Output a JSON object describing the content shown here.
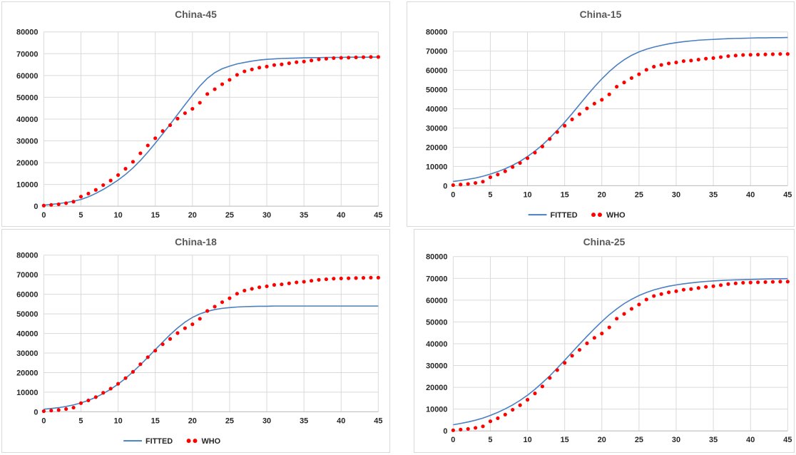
{
  "colors": {
    "fitted": "#4a7fc1",
    "who": "#ff0000",
    "grid": "#d9d9d9",
    "text": "#262626",
    "title": "#595959"
  },
  "legend": {
    "fitted_label": "FITTED",
    "who_label": "WHO"
  },
  "chart_data": [
    {
      "type": "line",
      "title": "China-45",
      "legend": "none",
      "grid": true,
      "xlim": [
        0,
        45
      ],
      "ylim": [
        0,
        80000
      ],
      "x_ticks": [
        "0",
        "5",
        "10",
        "15",
        "20",
        "25",
        "30",
        "35",
        "40",
        "45"
      ],
      "y_ticks": [
        "0",
        "10000",
        "20000",
        "30000",
        "40000",
        "50000",
        "60000",
        "70000",
        "80000"
      ],
      "series": [
        {
          "name": "FITTED",
          "kind": "line",
          "values": [
            500,
            850,
            1200,
            1700,
            2300,
            3100,
            4300,
            5900,
            7700,
            9800,
            12000,
            14600,
            17600,
            21000,
            24800,
            28900,
            33200,
            37600,
            42100,
            46600,
            51000,
            55200,
            58700,
            61300,
            63100,
            64300,
            65300,
            66000,
            66600,
            67100,
            67400,
            67600,
            67800,
            67900,
            68000,
            68100,
            68200,
            68200,
            68300,
            68300,
            68300,
            68400,
            68400,
            68400,
            68400,
            68500
          ]
        },
        {
          "name": "WHO",
          "kind": "scatter",
          "values": [
            300,
            600,
            900,
            1400,
            2100,
            4400,
            5800,
            7500,
            9700,
            11800,
            14300,
            17200,
            20400,
            24300,
            27900,
            31200,
            34500,
            37200,
            40200,
            42700,
            44700,
            47500,
            51500,
            53700,
            56000,
            58000,
            60300,
            61900,
            62800,
            63600,
            64100,
            64800,
            65100,
            65600,
            66100,
            66400,
            66900,
            67400,
            67700,
            68000,
            68100,
            68200,
            68300,
            68400,
            68500,
            68500
          ]
        }
      ]
    },
    {
      "type": "line",
      "title": "China-15",
      "legend": "bottom",
      "grid": true,
      "xlim": [
        0,
        45
      ],
      "ylim": [
        0,
        80000
      ],
      "x_ticks": [
        "0",
        "5",
        "10",
        "15",
        "20",
        "25",
        "30",
        "35",
        "40",
        "45"
      ],
      "y_ticks": [
        "0",
        "10000",
        "20000",
        "30000",
        "40000",
        "50000",
        "60000",
        "70000",
        "80000"
      ],
      "series": [
        {
          "name": "FITTED",
          "kind": "line",
          "values": [
            2200,
            2700,
            3300,
            4000,
            4900,
            6000,
            7300,
            8800,
            10600,
            12700,
            15200,
            18000,
            21200,
            24800,
            28800,
            33000,
            37500,
            42200,
            46900,
            51400,
            55600,
            59400,
            62700,
            65500,
            67800,
            69600,
            71000,
            72100,
            73000,
            73800,
            74400,
            74900,
            75300,
            75700,
            75900,
            76100,
            76300,
            76500,
            76600,
            76700,
            76800,
            76900,
            76900,
            77000,
            77000,
            77100
          ]
        },
        {
          "name": "WHO",
          "kind": "scatter",
          "values": [
            300,
            600,
            900,
            1400,
            2100,
            4400,
            5800,
            7500,
            9700,
            11800,
            14300,
            17200,
            20400,
            24300,
            27900,
            31200,
            34500,
            37200,
            40200,
            42700,
            44700,
            47500,
            51500,
            53700,
            56000,
            58000,
            60300,
            61900,
            62800,
            63600,
            64100,
            64800,
            65100,
            65600,
            66100,
            66400,
            66900,
            67400,
            67700,
            68000,
            68100,
            68200,
            68300,
            68400,
            68500,
            68500
          ]
        }
      ]
    },
    {
      "type": "line",
      "title": "China-18",
      "legend": "bottom",
      "grid": true,
      "xlim": [
        0,
        45
      ],
      "ylim": [
        0,
        80000
      ],
      "x_ticks": [
        "0",
        "5",
        "10",
        "15",
        "20",
        "25",
        "30",
        "35",
        "40",
        "45"
      ],
      "y_ticks": [
        "0",
        "10000",
        "20000",
        "30000",
        "40000",
        "50000",
        "60000",
        "70000",
        "80000"
      ],
      "series": [
        {
          "name": "FITTED",
          "kind": "line",
          "values": [
            1300,
            1650,
            2100,
            2700,
            3500,
            4500,
            5800,
            7400,
            9300,
            11500,
            14100,
            17100,
            20400,
            24000,
            27800,
            31700,
            35600,
            39400,
            42800,
            45800,
            48200,
            50000,
            51300,
            52200,
            52800,
            53200,
            53500,
            53700,
            53800,
            53900,
            53900,
            54000,
            54000,
            54000,
            54000,
            54000,
            54000,
            54000,
            54000,
            54000,
            54000,
            54000,
            54000,
            54000,
            54000,
            54000
          ]
        },
        {
          "name": "WHO",
          "kind": "scatter",
          "values": [
            300,
            600,
            900,
            1400,
            2100,
            4400,
            5800,
            7500,
            9700,
            11800,
            14300,
            17200,
            20400,
            24300,
            27900,
            31200,
            34500,
            37200,
            40200,
            42700,
            44700,
            47500,
            51500,
            53700,
            56000,
            58000,
            60300,
            61900,
            62800,
            63600,
            64100,
            64800,
            65100,
            65600,
            66100,
            66400,
            66900,
            67400,
            67700,
            68000,
            68100,
            68200,
            68300,
            68400,
            68500,
            68500
          ]
        }
      ]
    },
    {
      "type": "line",
      "title": "China-25",
      "legend": "none",
      "grid": true,
      "xlim": [
        0,
        45
      ],
      "ylim": [
        0,
        80000
      ],
      "x_ticks": [
        "0",
        "5",
        "10",
        "15",
        "20",
        "25",
        "30",
        "35",
        "40",
        "45"
      ],
      "y_ticks": [
        "0",
        "10000",
        "20000",
        "30000",
        "40000",
        "50000",
        "60000",
        "70000",
        "80000"
      ],
      "series": [
        {
          "name": "FITTED",
          "kind": "line",
          "values": [
            2800,
            3400,
            4100,
            4900,
            5900,
            7100,
            8500,
            10100,
            11900,
            14000,
            16400,
            19100,
            22100,
            25300,
            28800,
            32400,
            36100,
            39800,
            43400,
            46900,
            50200,
            53300,
            56000,
            58400,
            60400,
            62100,
            63500,
            64700,
            65600,
            66400,
            67000,
            67500,
            67900,
            68300,
            68600,
            68800,
            69000,
            69200,
            69300,
            69400,
            69500,
            69600,
            69700,
            69800,
            69800,
            69900
          ]
        },
        {
          "name": "WHO",
          "kind": "scatter",
          "values": [
            300,
            600,
            900,
            1400,
            2100,
            4400,
            5800,
            7500,
            9700,
            11800,
            14300,
            17200,
            20400,
            24300,
            27900,
            31200,
            34500,
            37200,
            40200,
            42700,
            44700,
            47500,
            51500,
            53700,
            56000,
            58000,
            60300,
            61900,
            62800,
            63600,
            64100,
            64800,
            65100,
            65600,
            66100,
            66400,
            66900,
            67400,
            67700,
            68000,
            68100,
            68200,
            68300,
            68400,
            68500,
            68500
          ]
        }
      ]
    }
  ]
}
